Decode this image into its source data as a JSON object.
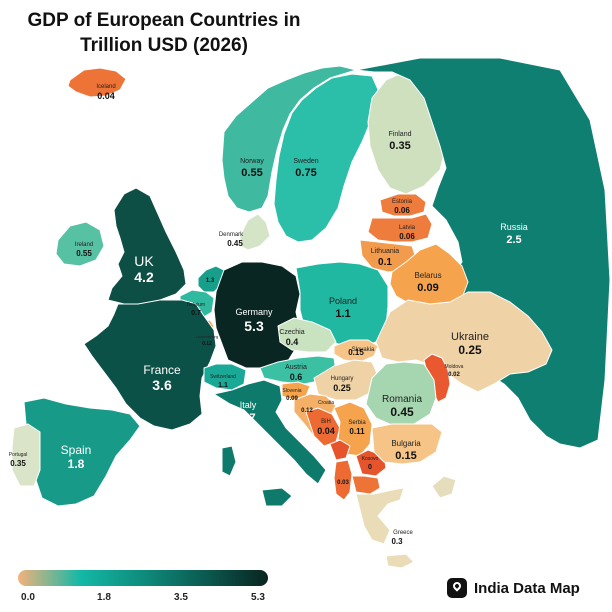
{
  "title": "GDP of European Countries in Trillion USD (2026)",
  "colors": {
    "scale": [
      "#f3b27b",
      "#14b8a6",
      "#0e8c7c",
      "#0b5a50",
      "#0a2420"
    ],
    "land_outline": "#ffffff"
  },
  "legend": {
    "ticks": [
      "0.0",
      "1.8",
      "3.5",
      "5.3"
    ]
  },
  "brand": {
    "name": "India Data Map",
    "icon": "map-pin-icon"
  },
  "countries": [
    {
      "id": "iceland",
      "name": "Iceland",
      "value": "0.04",
      "fill": "#ee7336"
    },
    {
      "id": "norway",
      "name": "Norway",
      "value": "0.55",
      "fill": "#3fb99f"
    },
    {
      "id": "sweden",
      "name": "Sweden",
      "value": "0.75",
      "fill": "#2bbfa9"
    },
    {
      "id": "finland",
      "name": "Finland",
      "value": "0.35",
      "fill": "#cfe0bf"
    },
    {
      "id": "russia",
      "name": "Russia",
      "value": "2.5",
      "fill": "#0f7f72"
    },
    {
      "id": "estonia",
      "name": "Estonia",
      "value": "0.06",
      "fill": "#ee7c3c"
    },
    {
      "id": "latvia",
      "name": "Latvia",
      "value": "0.06",
      "fill": "#ee7c3c"
    },
    {
      "id": "lithuania",
      "name": "Lithuania",
      "value": "0.1",
      "fill": "#f39b4c"
    },
    {
      "id": "belarus",
      "name": "Belarus",
      "value": "0.09",
      "fill": "#f5a34c"
    },
    {
      "id": "denmark",
      "name": "Denmark",
      "value": "0.45",
      "fill": "#d4e4c7"
    },
    {
      "id": "ireland",
      "name": "Ireland",
      "value": "0.55",
      "fill": "#57c1a3"
    },
    {
      "id": "uk",
      "name": "UK",
      "value": "4.2",
      "fill": "#0d4e45"
    },
    {
      "id": "netherlands",
      "name": "",
      "value": "1.3",
      "fill": "#179f8c"
    },
    {
      "id": "belgium",
      "name": "Belgium",
      "value": "0.7",
      "fill": "#2fba9f"
    },
    {
      "id": "luxembourg",
      "name": "Luxembourg",
      "value": "0.12",
      "fill": "#f5a54e"
    },
    {
      "id": "germany",
      "name": "Germany",
      "value": "5.3",
      "fill": "#0a2622"
    },
    {
      "id": "poland",
      "name": "Poland",
      "value": "1.1",
      "fill": "#20b8a0"
    },
    {
      "id": "france",
      "name": "France",
      "value": "3.6",
      "fill": "#0c5148"
    },
    {
      "id": "switzerland",
      "name": "Switzerland",
      "value": "1.1",
      "fill": "#1aa996"
    },
    {
      "id": "czechia",
      "name": "Czechia",
      "value": "0.4",
      "fill": "#c9e2c0"
    },
    {
      "id": "slovakia",
      "name": "Slovakia",
      "value": "0.15",
      "fill": "#f6c487"
    },
    {
      "id": "austria",
      "name": "Austria",
      "value": "0.6",
      "fill": "#3cc0a4"
    },
    {
      "id": "hungary",
      "name": "Hungary",
      "value": "0.25",
      "fill": "#efd3a6"
    },
    {
      "id": "ukraine",
      "name": "Ukraine",
      "value": "0.25",
      "fill": "#efd3a6"
    },
    {
      "id": "moldova",
      "name": "Moldova",
      "value": "0.02",
      "fill": "#e9582e"
    },
    {
      "id": "romania",
      "name": "Romania",
      "value": "0.45",
      "fill": "#a5d6b0"
    },
    {
      "id": "slovenia",
      "name": "Slovenia",
      "value": "0.09",
      "fill": "#f5a34c"
    },
    {
      "id": "croatia",
      "name": "Croatia",
      "value": "0.12",
      "fill": "#f5b068"
    },
    {
      "id": "bih",
      "name": "BiH",
      "value": "0.04",
      "fill": "#ee6a33"
    },
    {
      "id": "serbia",
      "name": "Serbia",
      "value": "0.11",
      "fill": "#f5a34c"
    },
    {
      "id": "montenegro",
      "name": "",
      "value": "",
      "fill": "#e6542c"
    },
    {
      "id": "kosovo",
      "name": "Kosovo",
      "value": "0",
      "fill": "#e6542c"
    },
    {
      "id": "albania",
      "name": "",
      "value": "0.03",
      "fill": "#ee6a33"
    },
    {
      "id": "north_macedonia",
      "name": "",
      "value": "",
      "fill": "#ee7336"
    },
    {
      "id": "bulgaria",
      "name": "Bulgaria",
      "value": "0.15",
      "fill": "#f6c487"
    },
    {
      "id": "italy",
      "name": "Italy",
      "value": "2.7",
      "fill": "#0e7a6c"
    },
    {
      "id": "spain",
      "name": "Spain",
      "value": "1.8",
      "fill": "#179a88"
    },
    {
      "id": "portugal",
      "name": "Portugal",
      "value": "0.35",
      "fill": "#d9e4c8"
    },
    {
      "id": "greece",
      "name": "Greece",
      "value": "0.3",
      "fill": "#eadcb6"
    },
    {
      "id": "turkey_eu",
      "name": "",
      "value": "",
      "fill": "#e6ddbd"
    }
  ]
}
